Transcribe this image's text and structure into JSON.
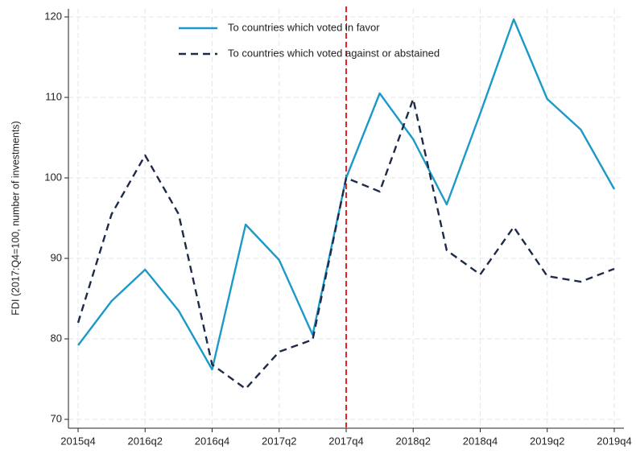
{
  "chart_data": {
    "type": "line",
    "y_label": "FDI (2017:Q4=100, number of investments)",
    "categories": [
      "2015q4",
      null,
      "2016q2",
      null,
      "2016q4",
      null,
      "2017q2",
      null,
      "2017q4",
      null,
      "2018q2",
      null,
      "2018q4",
      null,
      "2019q2",
      null,
      "2019q4"
    ],
    "series": [
      {
        "name": "To countries which voted in favor",
        "color": "#1b9ac8",
        "dash": false,
        "values": [
          79.2,
          84.7,
          88.6,
          83.5,
          76.2,
          94.2,
          89.8,
          80.5,
          100,
          110.5,
          104.8,
          96.7,
          108,
          119.7,
          109.8,
          106,
          98.6
        ]
      },
      {
        "name": "To countries which voted against or abstained",
        "color": "#1f2a4a",
        "dash": true,
        "values": [
          82,
          95.5,
          102.8,
          95.5,
          76.8,
          73.8,
          78.4,
          79.9,
          100,
          98.3,
          109.8,
          91,
          88,
          93.9,
          87.8,
          87.1,
          88.7
        ]
      }
    ],
    "vline": {
      "at": "2017q4",
      "color": "#e0262b"
    },
    "ylim": [
      69,
      121
    ],
    "yticks": [
      70,
      80,
      90,
      100,
      110,
      120
    ],
    "grid": true,
    "legend": "top"
  }
}
